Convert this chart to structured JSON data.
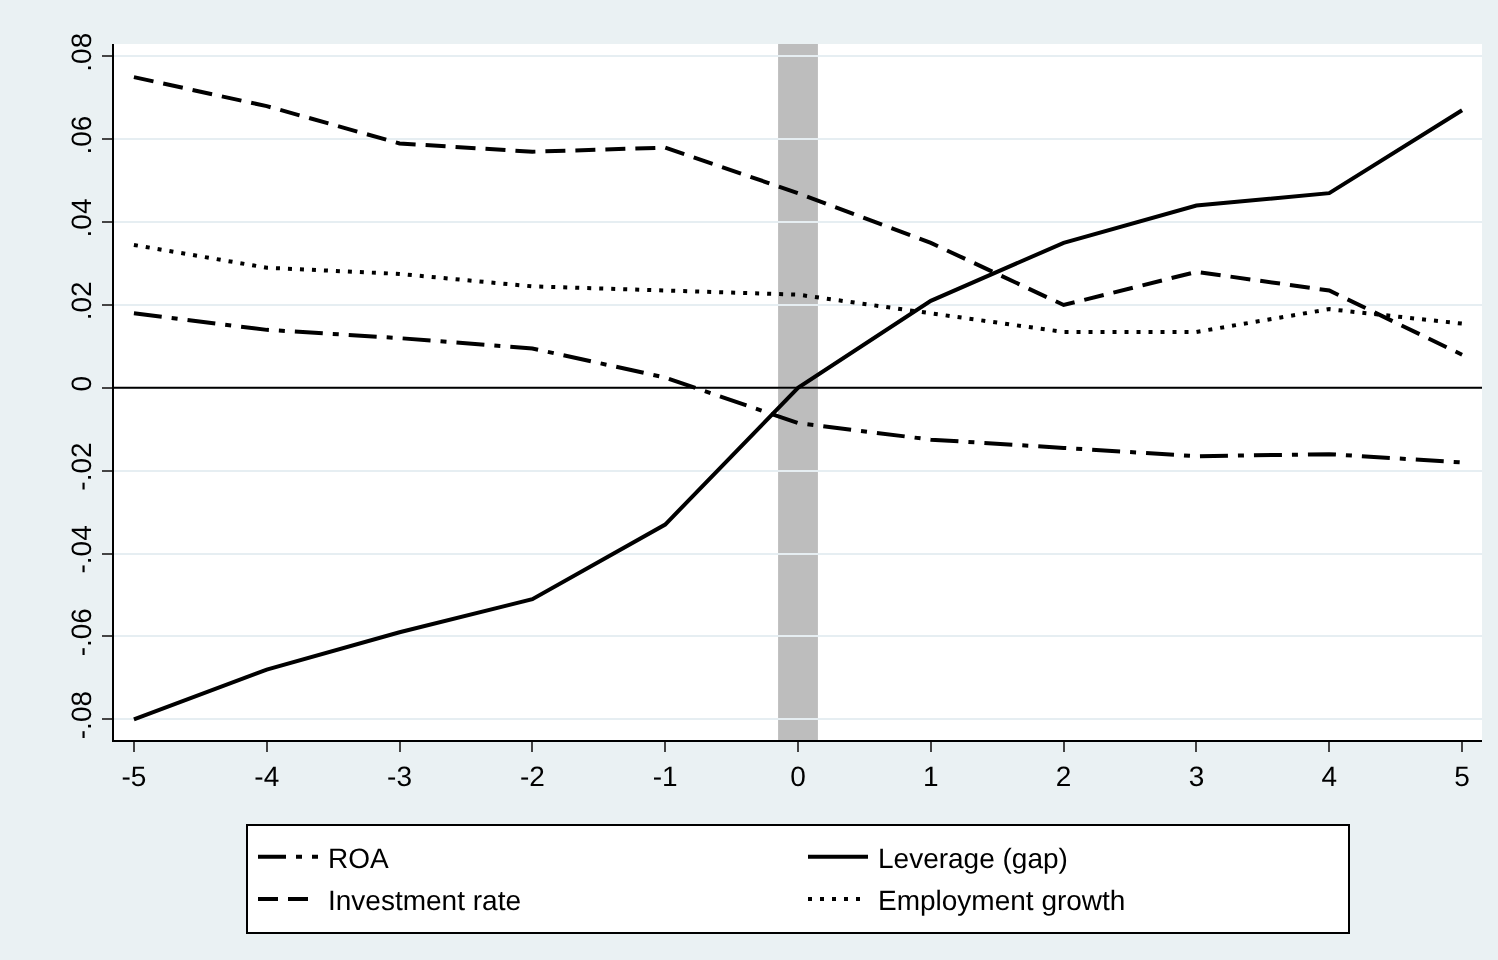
{
  "chart_data": {
    "type": "line",
    "x": [
      -5,
      -4,
      -3,
      -2,
      -1,
      0,
      1,
      2,
      3,
      4,
      5
    ],
    "series": [
      {
        "name": "ROA",
        "color": "#000000",
        "line_style": "dashdot",
        "values": [
          0.018,
          0.014,
          0.012,
          0.0095,
          0.0025,
          -0.0085,
          -0.0125,
          -0.0145,
          -0.0165,
          -0.016,
          -0.018
        ]
      },
      {
        "name": "Leverage (gap)",
        "color": "#000000",
        "line_style": "solid",
        "values": [
          -0.08,
          -0.068,
          -0.059,
          -0.051,
          -0.033,
          0.0,
          0.021,
          0.035,
          0.044,
          0.047,
          0.067
        ]
      },
      {
        "name": "Investment rate",
        "color": "#000000",
        "line_style": "dashed",
        "values": [
          0.075,
          0.068,
          0.059,
          0.057,
          0.058,
          0.047,
          0.035,
          0.02,
          0.028,
          0.0235,
          0.008
        ]
      },
      {
        "name": "Employment growth",
        "color": "#000000",
        "line_style": "dotted",
        "values": [
          0.0345,
          0.029,
          0.0275,
          0.0245,
          0.0235,
          0.0225,
          0.018,
          0.0135,
          0.0135,
          0.019,
          0.0155
        ]
      }
    ],
    "xlim": [
      -5.15,
      5.15
    ],
    "ylim": [
      -0.085,
      0.083
    ],
    "xticks": [
      -5,
      -4,
      -3,
      -2,
      -1,
      0,
      1,
      2,
      3,
      4,
      5
    ],
    "yticks": [
      {
        "value": -0.08,
        "label": "-.08"
      },
      {
        "value": -0.06,
        "label": "-.06"
      },
      {
        "value": -0.04,
        "label": "-.04"
      },
      {
        "value": -0.02,
        "label": "-.02"
      },
      0,
      {
        "value": 0.02,
        "label": ".02"
      },
      {
        "value": 0.04,
        "label": ".04"
      },
      {
        "value": 0.06,
        "label": ".06"
      },
      {
        "value": 0.08,
        "label": ".08"
      }
    ],
    "ref_lines": [
      {
        "axis": "y",
        "value": 0,
        "color": "#000000"
      }
    ],
    "bands": [
      {
        "axis": "x",
        "from": -0.15,
        "to": 0.15,
        "color": "#bdbdbd"
      }
    ],
    "grid": "y",
    "legend": "bottom",
    "marker": "none"
  }
}
